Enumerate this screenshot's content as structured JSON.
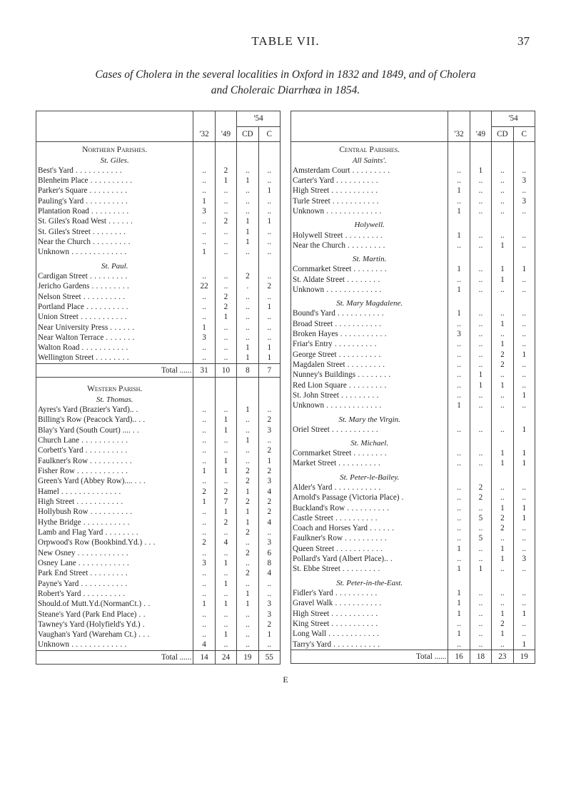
{
  "page": {
    "chapter": "TABLE VII.",
    "number": "37",
    "caption_line1": "Cases of Cholera in the several localities in Oxford in 1832 and 1849, and of Cholera",
    "caption_line2": "and Choleraic Diarrhœa in 1854.",
    "signature": "E"
  },
  "headers": {
    "y32": "'32",
    "y49": "'49",
    "y54": "'54",
    "cd": "CD",
    "c": "C"
  },
  "left": {
    "title1": "Northern Parishes.",
    "sub1": "St. Giles.",
    "rows1": [
      {
        "name": "Best's Yard",
        "v": [
          "..",
          "2",
          "..",
          ".."
        ]
      },
      {
        "name": "Blenheim Place",
        "v": [
          "..",
          "1",
          "1",
          ".."
        ]
      },
      {
        "name": "Parker's Square",
        "v": [
          "..",
          "..",
          "..",
          "1"
        ]
      },
      {
        "name": "Pauling's Yard",
        "v": [
          "1",
          "..",
          "..",
          ".."
        ]
      },
      {
        "name": "Plantation Road",
        "v": [
          "3",
          "..",
          "..",
          ".."
        ]
      },
      {
        "name": "St. Giles's Road West",
        "v": [
          "..",
          "2",
          "1",
          "1"
        ]
      },
      {
        "name": "St. Giles's Street",
        "v": [
          "..",
          "..",
          "1",
          ".."
        ]
      },
      {
        "name": "Near the Church",
        "v": [
          "..",
          "..",
          "1",
          ".."
        ]
      },
      {
        "name": "Unknown",
        "v": [
          "1",
          "..",
          "..",
          ".."
        ]
      }
    ],
    "sub2": "St. Paul.",
    "rows2": [
      {
        "name": "Cardigan Street",
        "v": [
          "..",
          "..",
          "2",
          ".."
        ]
      },
      {
        "name": "Jericho Gardens",
        "v": [
          "22",
          "..",
          ".",
          "2"
        ]
      },
      {
        "name": "Nelson Street",
        "v": [
          "..",
          "2",
          "..",
          ".."
        ]
      },
      {
        "name": "Portland Place",
        "v": [
          "..",
          "2",
          "..",
          "1"
        ]
      },
      {
        "name": "Union Street",
        "v": [
          "..",
          "1",
          "..",
          ".."
        ]
      },
      {
        "name": "Near University Press",
        "v": [
          "1",
          "..",
          "..",
          ".."
        ]
      },
      {
        "name": "Near Walton Terrace",
        "v": [
          "3",
          "..",
          "..",
          ".."
        ]
      },
      {
        "name": "Walton Road",
        "v": [
          "..",
          "..",
          "1",
          "1"
        ]
      },
      {
        "name": "Wellington Street",
        "v": [
          "..",
          "..",
          "1",
          "1"
        ]
      }
    ],
    "total1": {
      "label": "Total",
      "v": [
        "31",
        "10",
        "8",
        "7"
      ]
    },
    "title2": "Western Parish.",
    "sub3": "St. Thomas.",
    "rows3": [
      {
        "name": "Ayres's Yard (Brazier's Yard)..",
        "v": [
          "..",
          "..",
          "1",
          ".."
        ]
      },
      {
        "name": "Billing's Row (Peacock Yard)..",
        "v": [
          "..",
          "1",
          "..",
          "2"
        ]
      },
      {
        "name": "Blay's Yard (South Court) ....",
        "v": [
          "..",
          "1",
          "..",
          "3"
        ]
      },
      {
        "name": "Church Lane",
        "v": [
          "..",
          "..",
          "1",
          ".."
        ]
      },
      {
        "name": "Corbett's Yard",
        "v": [
          "..",
          "..",
          "..",
          "2"
        ]
      },
      {
        "name": "Faulkner's Row",
        "v": [
          "..",
          "1",
          "..",
          "1"
        ]
      },
      {
        "name": "Fisher Row",
        "v": [
          "1",
          "1",
          "2",
          "2"
        ]
      },
      {
        "name": "Green's Yard (Abbey Row)....",
        "v": [
          "..",
          "..",
          "2",
          "3"
        ]
      },
      {
        "name": "Hamel",
        "v": [
          "2",
          "2",
          "1",
          "4"
        ]
      },
      {
        "name": "High Street",
        "v": [
          "1",
          "7",
          "2",
          "2"
        ]
      },
      {
        "name": "Hollybush Row",
        "v": [
          "..",
          "1",
          "1",
          "2"
        ]
      },
      {
        "name": "Hythe Bridge",
        "v": [
          "..",
          "2",
          "1",
          "4"
        ]
      },
      {
        "name": "Lamb and Flag Yard",
        "v": [
          "..",
          "..",
          "2",
          ".."
        ]
      },
      {
        "name": "Orpwood's Row (Bookbind.Yd.)",
        "v": [
          "2",
          "4",
          "..",
          "3"
        ]
      },
      {
        "name": "New Osney",
        "v": [
          "..",
          "..",
          "2",
          "6"
        ]
      },
      {
        "name": "Osney Lane",
        "v": [
          "3",
          "1",
          "..",
          "8"
        ]
      },
      {
        "name": "Park End Street",
        "v": [
          "..",
          "..",
          "2",
          "4"
        ]
      },
      {
        "name": "Payne's Yard",
        "v": [
          "..",
          "1",
          "..",
          ".."
        ]
      },
      {
        "name": "Robert's Yard",
        "v": [
          "..",
          "..",
          "1",
          ".."
        ]
      },
      {
        "name": "Should.of Mutt.Yd.(NormanCt.)",
        "v": [
          "1",
          "1",
          "1",
          "3"
        ]
      },
      {
        "name": "Steane's Yard (Park End Place)",
        "v": [
          "..",
          "..",
          "..",
          "3"
        ]
      },
      {
        "name": "Tawney's Yard (Holyfield's Yd.)",
        "v": [
          "..",
          "..",
          "..",
          "2"
        ]
      },
      {
        "name": "Vaughan's Yard (Wareham Ct.)",
        "v": [
          "..",
          "1",
          "..",
          "1"
        ]
      },
      {
        "name": "Unknown",
        "v": [
          "4",
          "..",
          "..",
          ".."
        ]
      }
    ],
    "total2": {
      "label": "Total",
      "v": [
        "14",
        "24",
        "19",
        "55"
      ]
    }
  },
  "right": {
    "title1": "Central Parishes.",
    "sub1": "All Saints'.",
    "rows1": [
      {
        "name": "Amsterdam Court",
        "v": [
          "..",
          "1",
          "..",
          ".."
        ]
      },
      {
        "name": "Carter's Yard",
        "v": [
          "..",
          "..",
          "..",
          "3"
        ]
      },
      {
        "name": "High Street",
        "v": [
          "1",
          "..",
          "..",
          ".."
        ]
      },
      {
        "name": "Turle Street",
        "v": [
          "..",
          "..",
          "..",
          "3"
        ]
      },
      {
        "name": "Unknown",
        "v": [
          "1",
          "..",
          "..",
          ".."
        ]
      }
    ],
    "sub2": "Holywell.",
    "rows2": [
      {
        "name": "Holywell Street",
        "v": [
          "1",
          "..",
          "..",
          ".."
        ]
      },
      {
        "name": "Near the Church",
        "v": [
          "..",
          "..",
          "1",
          ".."
        ]
      }
    ],
    "sub3": "St. Martin.",
    "rows3": [
      {
        "name": "Cornmarket Street",
        "v": [
          "1",
          "..",
          "1",
          "1"
        ]
      },
      {
        "name": "St. Aldate Street",
        "v": [
          "..",
          "..",
          "1",
          ".."
        ]
      },
      {
        "name": "Unknown",
        "v": [
          "1",
          "..",
          "..",
          ".."
        ]
      }
    ],
    "sub4": "St. Mary Magdalene.",
    "rows4": [
      {
        "name": "Bound's Yard",
        "v": [
          "1",
          "..",
          "..",
          ".."
        ]
      },
      {
        "name": "Broad Street",
        "v": [
          "..",
          "..",
          "1",
          ".."
        ]
      },
      {
        "name": "Broken Hayes",
        "v": [
          "3",
          "..",
          "..",
          ".."
        ]
      },
      {
        "name": "Friar's Entry",
        "v": [
          "..",
          "..",
          "1",
          ".."
        ]
      },
      {
        "name": "George Street",
        "v": [
          "..",
          "..",
          "2",
          "1"
        ]
      },
      {
        "name": "Magdalen Street",
        "v": [
          "..",
          "..",
          "2",
          ".."
        ]
      },
      {
        "name": "Nunney's Buildings",
        "v": [
          "..",
          "1",
          "..",
          ".."
        ]
      },
      {
        "name": "Red Lion Square",
        "v": [
          "..",
          "1",
          "1",
          ".."
        ]
      },
      {
        "name": "St. John Street",
        "v": [
          "..",
          "..",
          "..",
          "1"
        ]
      },
      {
        "name": "Unknown",
        "v": [
          "1",
          "..",
          "..",
          ".."
        ]
      }
    ],
    "sub5": "St. Mary the Virgin.",
    "rows5": [
      {
        "name": "Oriel Street",
        "v": [
          "..",
          "..",
          "..",
          "1"
        ]
      }
    ],
    "sub6": "St. Michael.",
    "rows6": [
      {
        "name": "Cornmarket Street",
        "v": [
          "..",
          "..",
          "1",
          "1"
        ]
      },
      {
        "name": "Market Street",
        "v": [
          "..",
          "..",
          "1",
          "1"
        ]
      }
    ],
    "sub7": "St. Peter-le-Bailey.",
    "rows7": [
      {
        "name": "Alder's Yard",
        "v": [
          "..",
          "2",
          "..",
          ".."
        ]
      },
      {
        "name": "Arnold's Passage (Victoria Place)",
        "v": [
          "..",
          "2",
          "..",
          ".."
        ]
      },
      {
        "name": "Buckland's Row",
        "v": [
          "..",
          "..",
          "1",
          "1"
        ]
      },
      {
        "name": "Castle Street",
        "v": [
          "..",
          "5",
          "2",
          "1"
        ]
      },
      {
        "name": "Coach and Horses Yard",
        "v": [
          "..",
          "..",
          "2",
          ".."
        ]
      },
      {
        "name": "Faulkner's Row",
        "v": [
          "..",
          "5",
          "..",
          ".."
        ]
      },
      {
        "name": "Queen Street",
        "v": [
          "1",
          "..",
          "1",
          ".."
        ]
      },
      {
        "name": "Pollard's Yard (Albert Place)..",
        "v": [
          "..",
          "..",
          "1",
          "3"
        ]
      },
      {
        "name": "St. Ebbe Street",
        "v": [
          "1",
          "1",
          "..",
          ".."
        ]
      }
    ],
    "sub8": "St. Peter-in-the-East.",
    "rows8": [
      {
        "name": "Fidler's Yard",
        "v": [
          "1",
          "..",
          "..",
          ".."
        ]
      },
      {
        "name": "Gravel Walk",
        "v": [
          "1",
          "..",
          "..",
          ".."
        ]
      },
      {
        "name": "High Street",
        "v": [
          "1",
          "..",
          "1",
          "1"
        ]
      },
      {
        "name": "King Street",
        "v": [
          "..",
          "..",
          "2",
          ".."
        ]
      },
      {
        "name": "Long Wall",
        "v": [
          "1",
          "..",
          "1",
          ".."
        ]
      },
      {
        "name": "Tarry's Yard",
        "v": [
          "..",
          "..",
          "..",
          "1"
        ]
      }
    ],
    "total": {
      "label": "Total",
      "v": [
        "16",
        "18",
        "23",
        "19"
      ]
    }
  }
}
